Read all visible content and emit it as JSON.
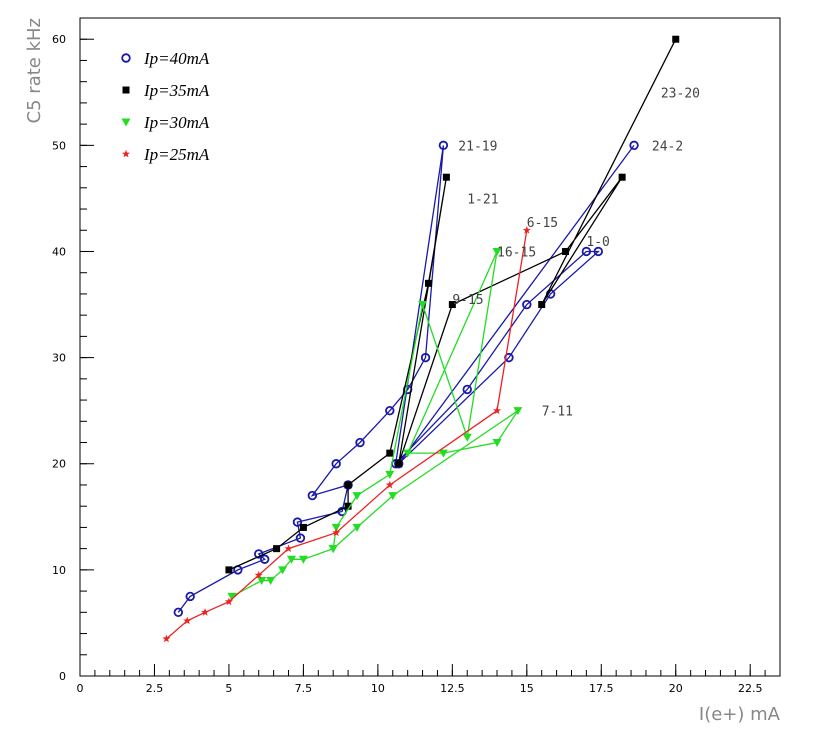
{
  "chart_data": {
    "type": "line",
    "title": "",
    "xlabel": "I(e+) mA",
    "ylabel": "C5 rate kHz",
    "xlim": [
      0,
      23.5
    ],
    "ylim": [
      0,
      62
    ],
    "x_ticks": [
      "0",
      "2.5",
      "5",
      "7.5",
      "10",
      "12.5",
      "15",
      "17.5",
      "20",
      "22.5"
    ],
    "y_ticks": [
      "0",
      "10",
      "20",
      "30",
      "40",
      "50",
      "60"
    ],
    "legend": "top-left",
    "series": [
      {
        "name": "Ip=40mA",
        "color": "#1a1aaa",
        "marker": "open-circle",
        "points": [
          [
            3.3,
            6.0
          ],
          [
            3.7,
            7.5
          ],
          [
            5.3,
            10.0
          ],
          [
            6.2,
            11.0
          ],
          [
            6.0,
            11.5
          ],
          [
            7.4,
            13.0
          ],
          [
            7.3,
            14.5
          ],
          [
            8.8,
            15.5
          ],
          [
            9.0,
            18.0
          ],
          [
            7.8,
            17.0
          ],
          [
            8.6,
            20.0
          ],
          [
            9.4,
            22.0
          ],
          [
            10.4,
            25.0
          ],
          [
            11.0,
            27.0
          ],
          [
            11.6,
            30.0
          ],
          [
            12.2,
            50.0
          ],
          [
            10.6,
            20.0
          ],
          [
            13.0,
            27.0
          ],
          [
            15.0,
            35.0
          ],
          [
            17.0,
            40.0
          ],
          [
            17.4,
            40.0
          ],
          [
            15.8,
            36.0
          ],
          [
            14.4,
            30.0
          ],
          [
            10.7,
            20.0
          ],
          [
            18.6,
            50.0
          ]
        ]
      },
      {
        "name": "Ip=35mA",
        "color": "#000000",
        "marker": "filled-square",
        "points": [
          [
            5.0,
            10.0
          ],
          [
            6.6,
            12.0
          ],
          [
            7.5,
            14.0
          ],
          [
            9.0,
            16.0
          ],
          [
            9.0,
            18.0
          ],
          [
            10.4,
            21.0
          ],
          [
            11.7,
            37.0
          ],
          [
            12.3,
            47.0
          ],
          [
            10.7,
            20.0
          ],
          [
            12.5,
            35.0
          ],
          [
            16.3,
            40.0
          ],
          [
            18.2,
            47.0
          ],
          [
            15.5,
            35.0
          ],
          [
            20.0,
            60.0
          ]
        ]
      },
      {
        "name": "Ip=30mA",
        "color": "#22dd22",
        "marker": "filled-triangle-down",
        "points": [
          [
            5.1,
            7.5
          ],
          [
            6.1,
            9.0
          ],
          [
            6.4,
            9.0
          ],
          [
            6.8,
            10.0
          ],
          [
            7.1,
            11.0
          ],
          [
            7.5,
            11.0
          ],
          [
            8.5,
            12.0
          ],
          [
            8.6,
            14.0
          ],
          [
            9.3,
            17.0
          ],
          [
            10.4,
            19.0
          ],
          [
            11.5,
            35.0
          ],
          [
            13.0,
            22.5
          ],
          [
            14.0,
            40.0
          ],
          [
            11.0,
            21.0
          ],
          [
            12.2,
            21.0
          ],
          [
            14.0,
            22.0
          ],
          [
            14.7,
            25.0
          ],
          [
            10.5,
            17.0
          ],
          [
            9.3,
            14.0
          ],
          [
            8.5,
            12.0
          ]
        ]
      },
      {
        "name": "Ip=25mA",
        "color": "#ee2222",
        "marker": "filled-star",
        "points": [
          [
            2.9,
            3.5
          ],
          [
            3.6,
            5.2
          ],
          [
            4.2,
            6.0
          ],
          [
            5.0,
            7.0
          ],
          [
            6.0,
            9.5
          ],
          [
            7.0,
            12.0
          ],
          [
            8.6,
            13.5
          ],
          [
            10.4,
            18.0
          ],
          [
            14.0,
            25.0
          ],
          [
            15.0,
            42.0
          ]
        ]
      }
    ],
    "annotations": [
      {
        "text": "21-19",
        "x": 12.7,
        "y": 50.0
      },
      {
        "text": "1-21",
        "x": 13.0,
        "y": 45.0
      },
      {
        "text": "9-15",
        "x": 12.5,
        "y": 35.5
      },
      {
        "text": "6-15",
        "x": 15.0,
        "y": 42.8
      },
      {
        "text": "16-15",
        "x": 14.0,
        "y": 40.0
      },
      {
        "text": "1-0",
        "x": 17.0,
        "y": 41.0
      },
      {
        "text": "23-20",
        "x": 19.5,
        "y": 55.0
      },
      {
        "text": "24-2",
        "x": 19.2,
        "y": 50.0
      },
      {
        "text": "7-11",
        "x": 15.5,
        "y": 25.0
      }
    ]
  }
}
